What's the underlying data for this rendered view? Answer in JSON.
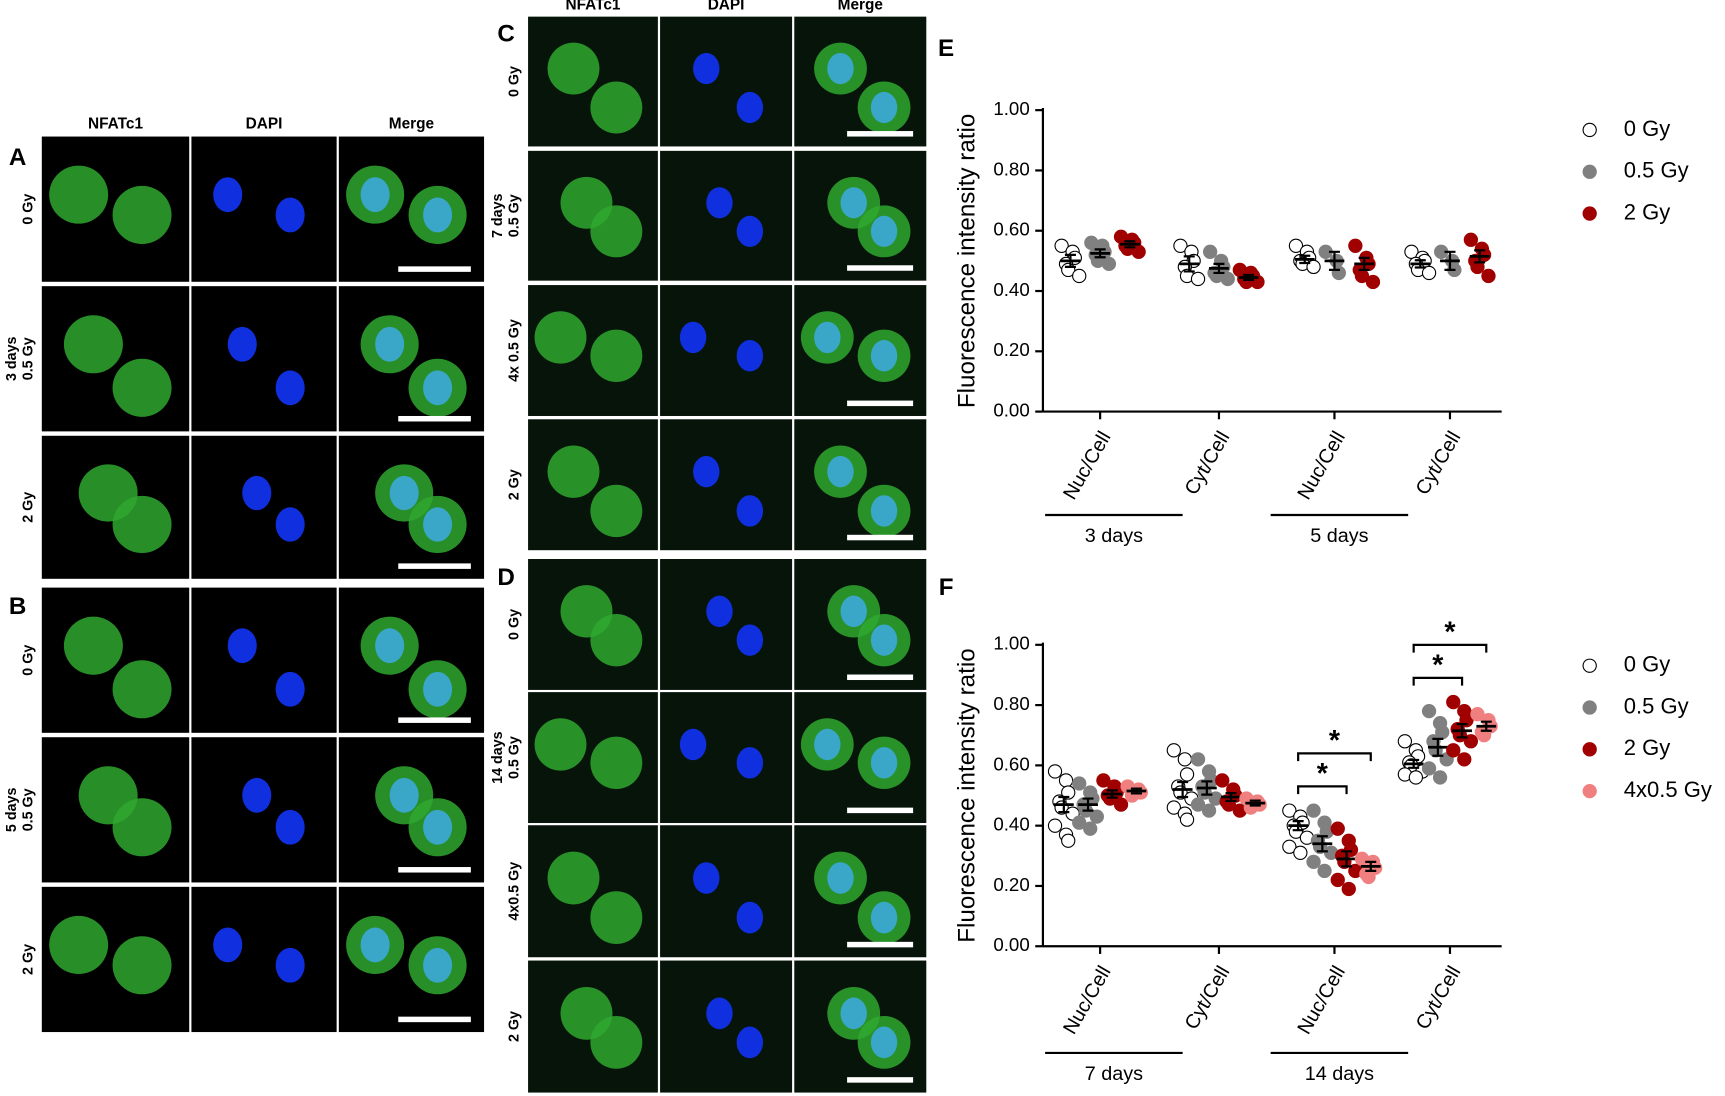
{
  "image_grids": [
    {
      "columns": [
        "NFATc1",
        "DAPI",
        "Merge"
      ],
      "panels": [
        {
          "label": "A",
          "rows": [
            [
              "0 Gy"
            ],
            [
              "3 days",
              "0.5 Gy"
            ],
            [
              "2 Gy"
            ]
          ]
        },
        {
          "label": "B",
          "rows": [
            [
              "0 Gy"
            ],
            [
              "5 days",
              "0.5 Gy"
            ],
            [
              "2 Gy"
            ]
          ]
        }
      ]
    },
    {
      "columns": [
        "NFATc1",
        "DAPI",
        "Merge"
      ],
      "panels": [
        {
          "label": "C",
          "rows": [
            [
              "0 Gy"
            ],
            [
              "7 days",
              "0.5 Gy"
            ],
            [
              "4x 0.5 Gy"
            ],
            [
              "2 Gy"
            ]
          ]
        },
        {
          "label": "D",
          "rows": [
            [
              "0 Gy"
            ],
            [
              "14 days",
              "0.5 Gy"
            ],
            [
              "4x0.5 Gy"
            ],
            [
              "2 Gy"
            ]
          ]
        }
      ]
    }
  ],
  "chart_data": [
    {
      "type": "dot",
      "panel": "E",
      "y_label": "Fluorescence intensity ratio",
      "categories": [
        "Nuc/Cell",
        "Cyt/Cell",
        "Nuc/Cell",
        "Cyt/Cell"
      ],
      "groups": [
        "3 days",
        "5 days"
      ],
      "ylim": [
        0,
        1
      ],
      "yticks": [
        {
          "value": 0,
          "label": "0.00"
        },
        {
          "value": 0.2,
          "label": "0.20"
        },
        {
          "value": 0.4,
          "label": "0.40"
        },
        {
          "value": 0.6,
          "label": "0.60"
        },
        {
          "value": 0.8,
          "label": "0.80"
        },
        {
          "value": 1,
          "label": "1.00"
        }
      ],
      "legend": "right",
      "series": [
        {
          "name": "0 Gy",
          "color": "#ffffff",
          "values": [
            0.5,
            0.49,
            0.505,
            0.49
          ],
          "errors": [
            0.02,
            0.025,
            0.012,
            0.012
          ],
          "points": [
            [
              0.55,
              0.53,
              0.51,
              0.49,
              0.47,
              0.45
            ],
            [
              0.55,
              0.53,
              0.5,
              0.48,
              0.45,
              0.44
            ],
            [
              0.55,
              0.53,
              0.51,
              0.5,
              0.49,
              0.48
            ],
            [
              0.53,
              0.51,
              0.5,
              0.49,
              0.47,
              0.46
            ]
          ]
        },
        {
          "name": "0.5 Gy",
          "color": "#808080",
          "values": [
            0.525,
            0.475,
            0.5,
            0.5
          ],
          "errors": [
            0.013,
            0.015,
            0.03,
            0.03
          ],
          "points": [
            [
              0.56,
              0.55,
              0.53,
              0.52,
              0.5,
              0.49
            ],
            [
              0.53,
              0.5,
              0.48,
              0.46,
              0.45,
              0.44
            ],
            [
              0.53,
              0.5,
              0.46
            ],
            [
              0.53,
              0.5,
              0.47
            ]
          ]
        },
        {
          "name": "2 Gy",
          "color": "#a00000",
          "values": [
            0.555,
            0.445,
            0.49,
            0.515
          ],
          "errors": [
            0.01,
            0.008,
            0.02,
            0.02
          ],
          "points": [
            [
              0.58,
              0.57,
              0.56,
              0.55,
              0.54,
              0.53
            ],
            [
              0.47,
              0.46,
              0.45,
              0.44,
              0.43,
              0.43
            ],
            [
              0.55,
              0.51,
              0.49,
              0.47,
              0.45,
              0.43
            ],
            [
              0.57,
              0.54,
              0.52,
              0.5,
              0.48,
              0.45
            ]
          ]
        }
      ]
    },
    {
      "type": "dot",
      "panel": "F",
      "y_label": "Fluorescence intensity ratio",
      "categories": [
        "Nuc/Cell",
        "Cyt/Cell",
        "Nuc/Cell",
        "Cyt/Cell"
      ],
      "groups": [
        "7 days",
        "14 days"
      ],
      "ylim": [
        0,
        1
      ],
      "yticks": [
        {
          "value": 0,
          "label": "0.00"
        },
        {
          "value": 0.2,
          "label": "0.20"
        },
        {
          "value": 0.4,
          "label": "0.40"
        },
        {
          "value": 0.6,
          "label": "0.60"
        },
        {
          "value": 0.8,
          "label": "0.80"
        },
        {
          "value": 1,
          "label": "1.00"
        }
      ],
      "legend": "right",
      "series": [
        {
          "name": "0 Gy",
          "color": "#ffffff",
          "values": [
            0.47,
            0.52,
            0.4,
            0.605
          ],
          "errors": [
            0.025,
            0.025,
            0.015,
            0.013
          ],
          "points": [
            [
              0.58,
              0.55,
              0.51,
              0.48,
              0.46,
              0.44,
              0.4,
              0.37,
              0.35
            ],
            [
              0.65,
              0.62,
              0.57,
              0.53,
              0.51,
              0.49,
              0.46,
              0.44,
              0.42
            ],
            [
              0.45,
              0.43,
              0.41,
              0.4,
              0.38,
              0.36,
              0.33,
              0.31
            ],
            [
              0.68,
              0.65,
              0.63,
              0.61,
              0.6,
              0.58,
              0.57,
              0.56
            ]
          ]
        },
        {
          "name": "0.5 Gy",
          "color": "#808080",
          "values": [
            0.47,
            0.525,
            0.34,
            0.66
          ],
          "errors": [
            0.02,
            0.022,
            0.025,
            0.028
          ],
          "points": [
            [
              0.54,
              0.51,
              0.49,
              0.47,
              0.45,
              0.43,
              0.41,
              0.39
            ],
            [
              0.62,
              0.58,
              0.55,
              0.53,
              0.51,
              0.49,
              0.47,
              0.45
            ],
            [
              0.45,
              0.41,
              0.38,
              0.35,
              0.33,
              0.31,
              0.28,
              0.25
            ],
            [
              0.78,
              0.74,
              0.71,
              0.68,
              0.65,
              0.62,
              0.59,
              0.56
            ]
          ]
        },
        {
          "name": "2 Gy",
          "color": "#a00000",
          "values": [
            0.505,
            0.495,
            0.29,
            0.715
          ],
          "errors": [
            0.012,
            0.013,
            0.025,
            0.022
          ],
          "points": [
            [
              0.55,
              0.53,
              0.51,
              0.5,
              0.49,
              0.47
            ],
            [
              0.55,
              0.52,
              0.5,
              0.48,
              0.47,
              0.45
            ],
            [
              0.39,
              0.35,
              0.32,
              0.3,
              0.28,
              0.25,
              0.22,
              0.19
            ],
            [
              0.81,
              0.78,
              0.75,
              0.72,
              0.7,
              0.68,
              0.65,
              0.62
            ]
          ]
        },
        {
          "name": "4x0.5 Gy",
          "color": "#f08080",
          "values": [
            0.515,
            0.475,
            0.265,
            0.73
          ],
          "errors": [
            0.008,
            0.008,
            0.015,
            0.015
          ],
          "points": [
            [
              0.53,
              0.52,
              0.51,
              0.5
            ],
            [
              0.49,
              0.48,
              0.47,
              0.46
            ],
            [
              0.29,
              0.28,
              0.26,
              0.24,
              0.23
            ],
            [
              0.77,
              0.75,
              0.73,
              0.71,
              0.7
            ]
          ]
        }
      ],
      "annotations": [
        {
          "text": "*",
          "category": 2,
          "series": [
            0,
            2
          ]
        },
        {
          "text": "*",
          "category": 2,
          "series": [
            0,
            3
          ]
        },
        {
          "text": "*",
          "category": 3,
          "series": [
            0,
            2
          ]
        },
        {
          "text": "*",
          "category": 3,
          "series": [
            0,
            3
          ]
        }
      ]
    }
  ]
}
